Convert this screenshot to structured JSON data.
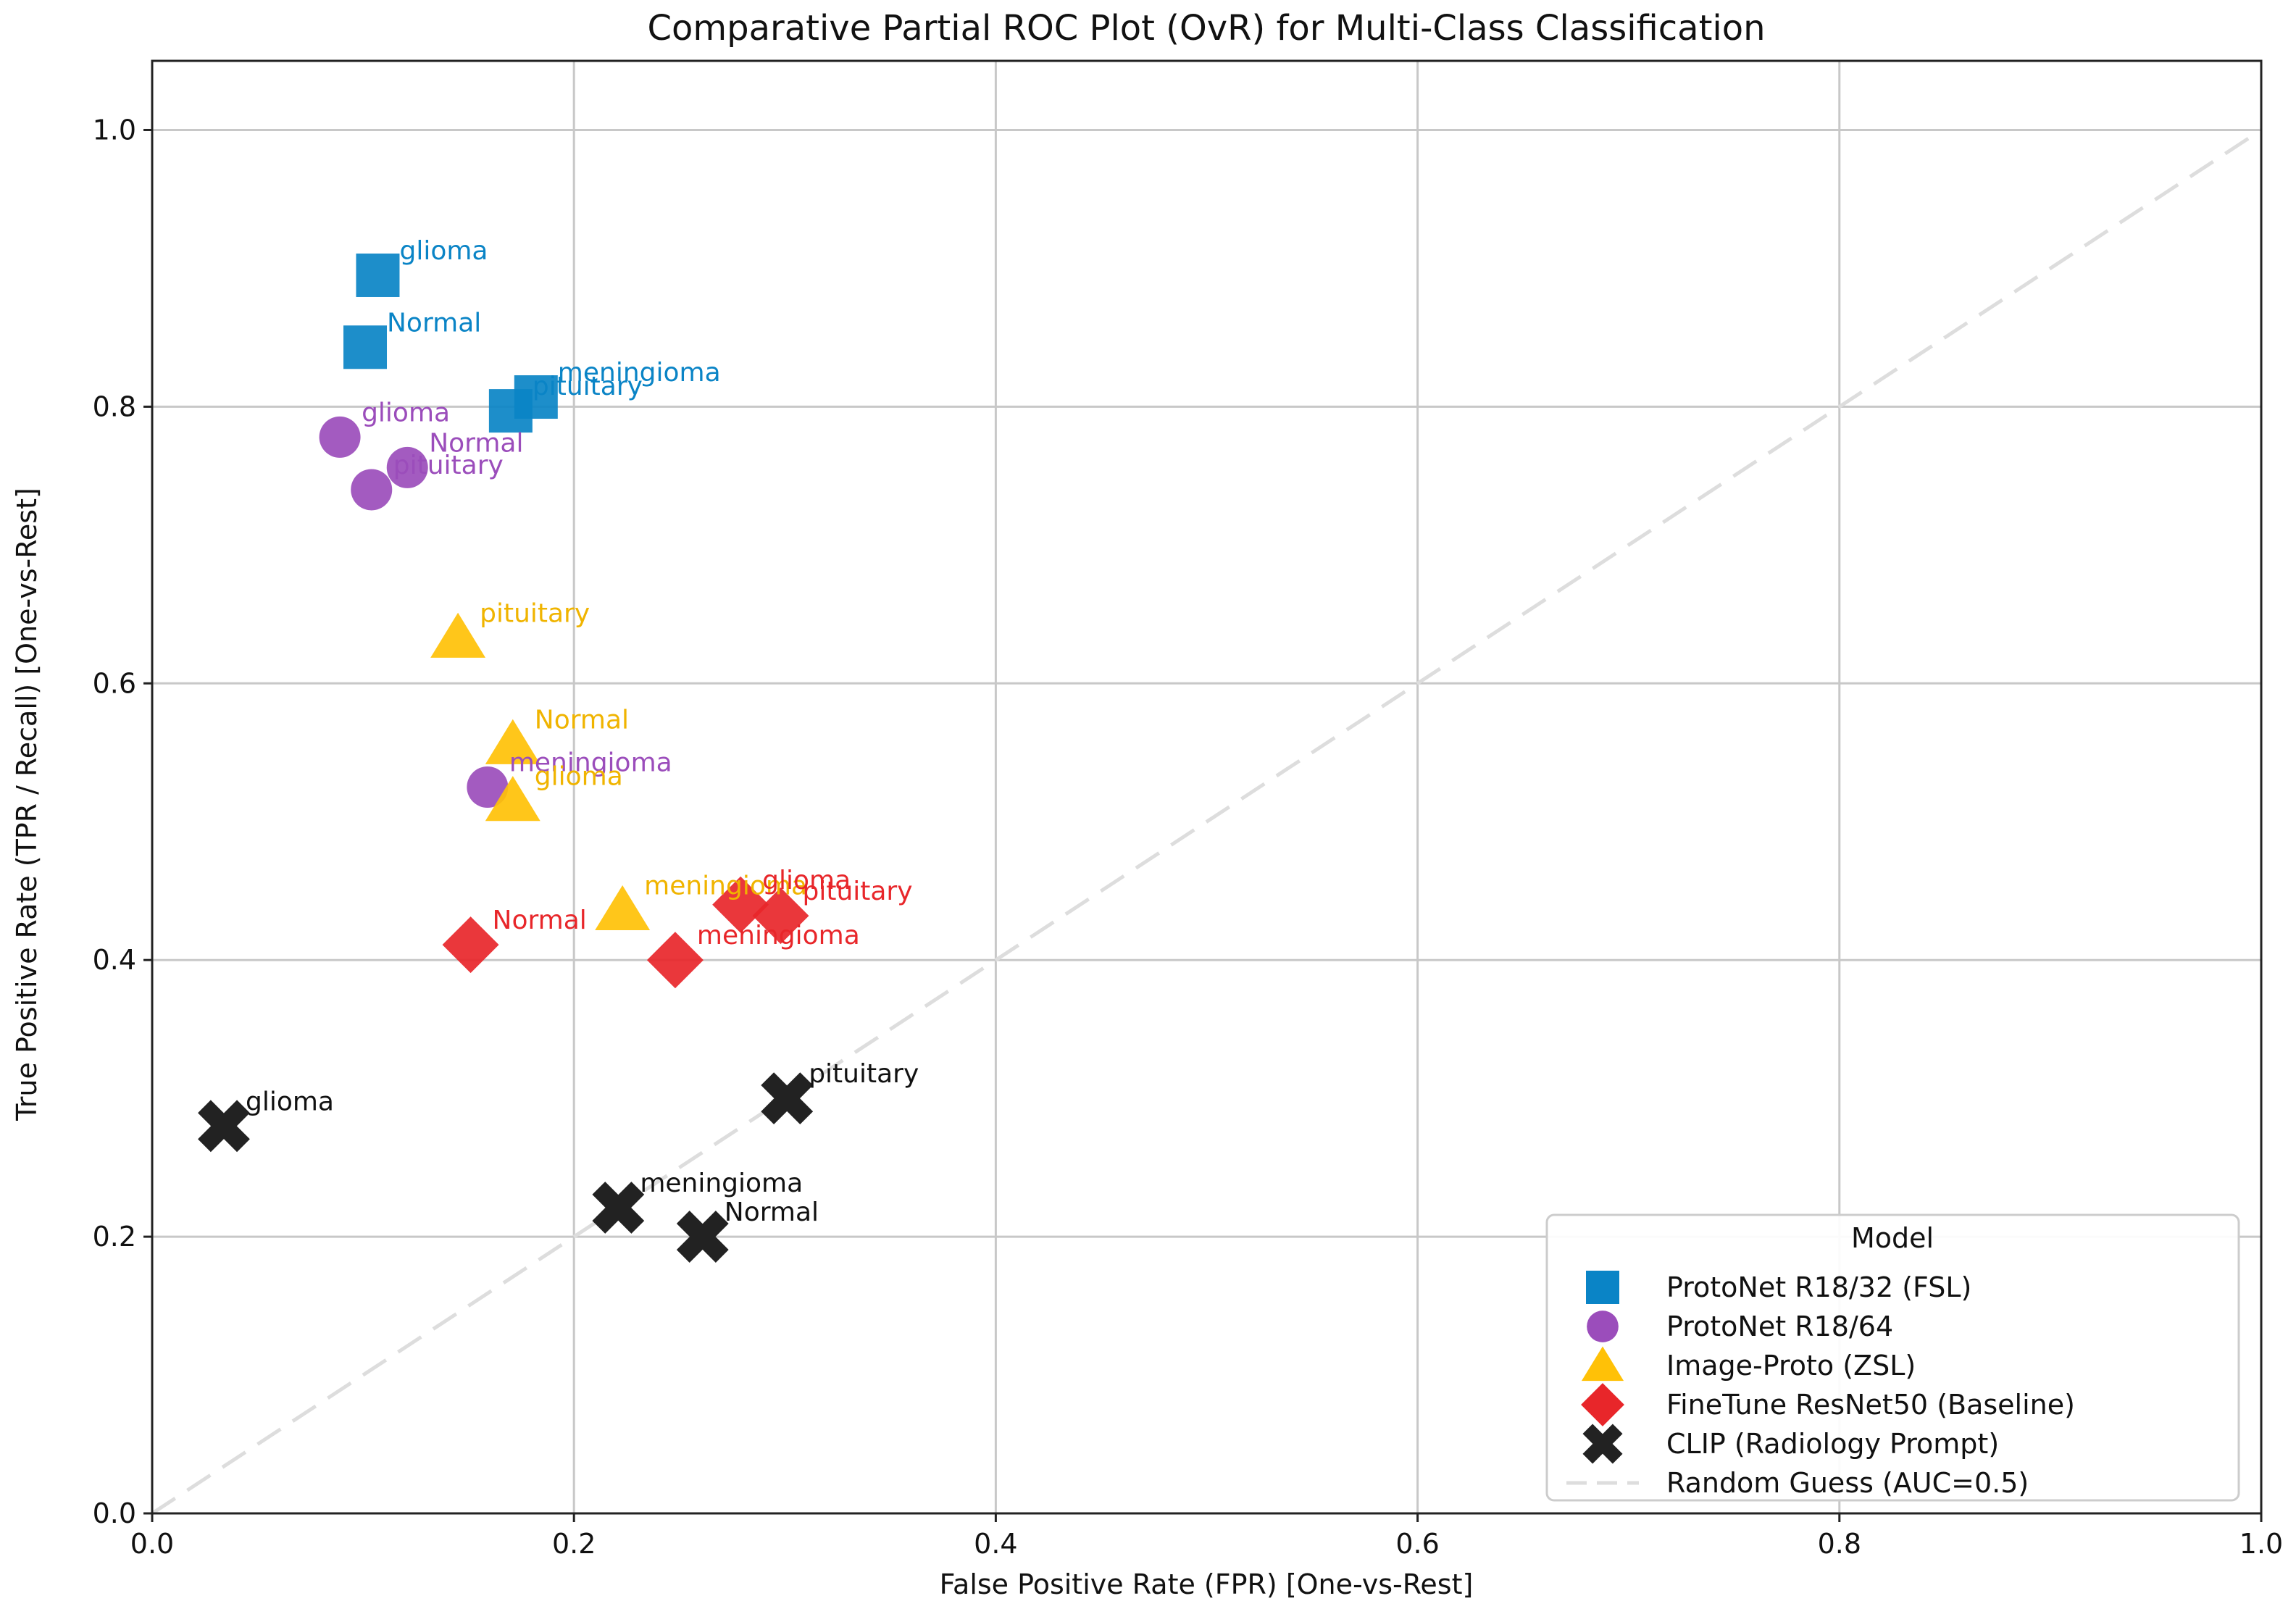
{
  "chart_data": {
    "type": "scatter",
    "title": "Comparative Partial ROC Plot (OvR) for Multi-Class Classification",
    "xlabel": "False Positive Rate (FPR) [One-vs-Rest]",
    "ylabel": "True Positive Rate (TPR / Recall) [One-vs-Rest]",
    "xlim": [
      0.0,
      1.0
    ],
    "ylim": [
      0.0,
      1.05
    ],
    "xticks": [
      0.0,
      0.2,
      0.4,
      0.6,
      0.8,
      1.0
    ],
    "yticks": [
      0.0,
      0.2,
      0.4,
      0.6,
      0.8,
      1.0
    ],
    "xtick_labels": [
      "0.0",
      "0.2",
      "0.4",
      "0.6",
      "0.8",
      "1.0"
    ],
    "ytick_labels": [
      "0.0",
      "0.2",
      "0.4",
      "0.6",
      "0.8",
      "1.0"
    ],
    "grid": true,
    "legend": {
      "title": "Model",
      "placement": "lower-right",
      "items": [
        {
          "label": "ProtoNet R18/32 (FSL)",
          "marker": "square",
          "color": "#0a84c6"
        },
        {
          "label": "ProtoNet R18/64",
          "marker": "circle",
          "color": "#9b4dbb"
        },
        {
          "label": "Image-Proto (ZSL)",
          "marker": "triangle",
          "color": "#ffc107"
        },
        {
          "label": "FineTune ResNet50 (Baseline)",
          "marker": "diamond",
          "color": "#e8262a"
        },
        {
          "label": "CLIP (Radiology Prompt)",
          "marker": "x",
          "color": "#222222"
        },
        {
          "label": "Random Guess (AUC=0.5)",
          "marker": "dashed-line",
          "color": "#dddddd"
        }
      ]
    },
    "reference_line": {
      "label": "Random Guess (AUC=0.5)",
      "x": [
        0,
        1
      ],
      "y": [
        0,
        1
      ],
      "color": "#dddddd",
      "style": "dashed"
    },
    "series": [
      {
        "name": "ProtoNet R18/32 (FSL)",
        "marker": "square",
        "color": "#0a84c6",
        "text_color": "#0a84c6",
        "points": [
          {
            "label": "glioma",
            "x": 0.107,
            "y": 0.895
          },
          {
            "label": "Normal",
            "x": 0.101,
            "y": 0.843
          },
          {
            "label": "meningioma",
            "x": 0.182,
            "y": 0.807
          },
          {
            "label": "pituitary",
            "x": 0.17,
            "y": 0.797
          }
        ]
      },
      {
        "name": "ProtoNet R18/64",
        "marker": "circle",
        "color": "#9b4dbb",
        "text_color": "#9b4dbb",
        "points": [
          {
            "label": "glioma",
            "x": 0.089,
            "y": 0.778
          },
          {
            "label": "Normal",
            "x": 0.121,
            "y": 0.756
          },
          {
            "label": "pituitary",
            "x": 0.104,
            "y": 0.74
          },
          {
            "label": "meningioma",
            "x": 0.159,
            "y": 0.525
          }
        ]
      },
      {
        "name": "Image-Proto (ZSL)",
        "marker": "triangle",
        "color": "#ffc107",
        "text_color": "#f0b400",
        "points": [
          {
            "label": "pituitary",
            "x": 0.145,
            "y": 0.633
          },
          {
            "label": "Normal",
            "x": 0.171,
            "y": 0.556
          },
          {
            "label": "glioma",
            "x": 0.171,
            "y": 0.515
          },
          {
            "label": "meningioma",
            "x": 0.223,
            "y": 0.436
          }
        ]
      },
      {
        "name": "FineTune ResNet50 (Baseline)",
        "marker": "diamond",
        "color": "#e8262a",
        "text_color": "#e8262a",
        "points": [
          {
            "label": "Normal",
            "x": 0.151,
            "y": 0.411
          },
          {
            "label": "meningioma",
            "x": 0.248,
            "y": 0.4
          },
          {
            "label": "glioma",
            "x": 0.279,
            "y": 0.44
          },
          {
            "label": "pituitary",
            "x": 0.298,
            "y": 0.432
          }
        ]
      },
      {
        "name": "CLIP (Radiology Prompt)",
        "marker": "x",
        "color": "#222222",
        "text_color": "#111111",
        "points": [
          {
            "label": "glioma",
            "x": 0.034,
            "y": 0.28
          },
          {
            "label": "pituitary",
            "x": 0.301,
            "y": 0.3
          },
          {
            "label": "meningioma",
            "x": 0.221,
            "y": 0.221
          },
          {
            "label": "Normal",
            "x": 0.261,
            "y": 0.2
          }
        ]
      }
    ]
  }
}
